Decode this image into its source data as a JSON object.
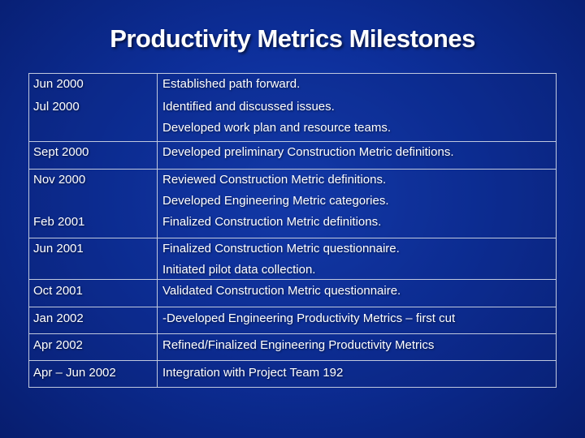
{
  "slide": {
    "title": "Productivity Metrics Milestones"
  },
  "rows": [
    {
      "date": "Jun 2000",
      "lines": [
        "Established path forward."
      ]
    },
    {
      "date": "Jul 2000",
      "lines": [
        "Identified and discussed issues.",
        "Developed work plan and resource teams."
      ]
    },
    {
      "date": "Sept 2000",
      "lines": [
        "Developed preliminary Construction Metric definitions."
      ]
    },
    {
      "date": "Nov 2000",
      "lines": [
        "Reviewed Construction Metric definitions.",
        "Developed Engineering Metric categories."
      ]
    },
    {
      "date": "Feb 2001",
      "lines": [
        "Finalized Construction Metric definitions."
      ]
    },
    {
      "date": "Jun 2001",
      "lines": [
        "Finalized Construction Metric questionnaire.",
        "Initiated pilot data collection."
      ]
    },
    {
      "date": "Oct 2001",
      "lines": [
        "Validated Construction Metric questionnaire."
      ]
    },
    {
      "date": "Jan 2002",
      "lines": [
        "-Developed Engineering Productivity Metrics – first cut"
      ]
    },
    {
      "date": "Apr 2002",
      "lines": [
        "Refined/Finalized Engineering Productivity Metrics"
      ]
    },
    {
      "date": "Apr – Jun 2002",
      "lines": [
        "Integration with Project Team 192"
      ]
    }
  ]
}
